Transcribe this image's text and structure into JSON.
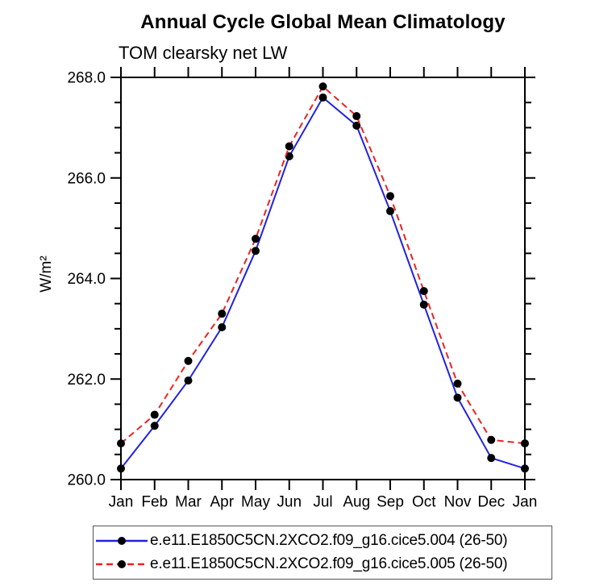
{
  "chart_data": {
    "type": "line",
    "title": "Annual Cycle Global Mean Climatology",
    "subtitle": "TOM clearsky net LW",
    "ylabel": "W/m²",
    "xlabel": "",
    "categories": [
      "Jan",
      "Feb",
      "Mar",
      "Apr",
      "May",
      "Jun",
      "Jul",
      "Aug",
      "Sep",
      "Oct",
      "Nov",
      "Dec",
      "Jan"
    ],
    "ylim": [
      260.0,
      268.0
    ],
    "y_major_ticks": [
      260.0,
      262.0,
      264.0,
      266.0,
      268.0
    ],
    "y_tick_labels": [
      "260.0",
      "262.0",
      "264.0",
      "266.0",
      "268.0"
    ],
    "y_minor_step": 0.5,
    "grid": "off",
    "legend_position": "bottom",
    "marker": "filled-circle",
    "marker_color": "#000000",
    "series": [
      {
        "name": "e.e11.E1850C5CN.2XCO2.f09_g16.cice5.004 (26-50)",
        "color": "#2222dd",
        "style": "solid",
        "dasharray": "none",
        "values": [
          260.22,
          261.07,
          261.97,
          263.03,
          264.55,
          266.43,
          267.6,
          267.04,
          265.34,
          263.48,
          261.63,
          260.43,
          260.22
        ]
      },
      {
        "name": "e.e11.E1850C5CN.2XCO2.f09_g16.cice5.005 (26-50)",
        "color": "#ee2222",
        "style": "dashed",
        "dasharray": "8 5",
        "values": [
          260.72,
          261.29,
          262.36,
          263.3,
          264.79,
          266.63,
          267.82,
          267.23,
          265.64,
          263.75,
          261.91,
          260.79,
          260.72
        ]
      }
    ]
  }
}
